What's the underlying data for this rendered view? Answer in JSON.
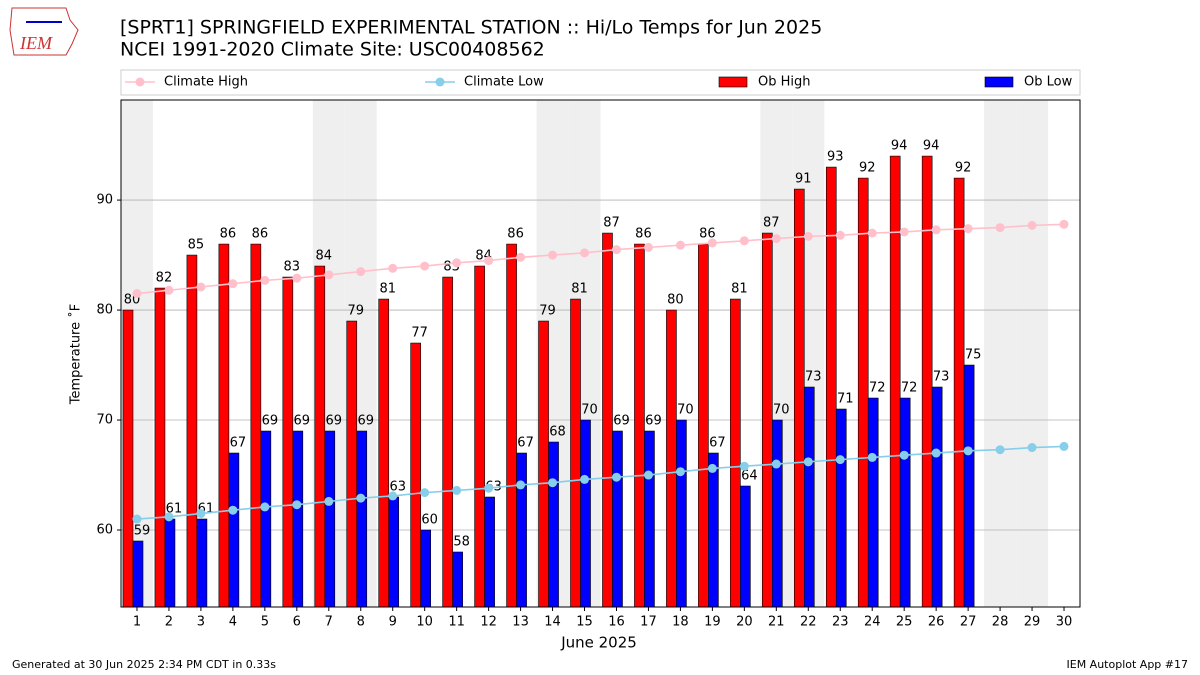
{
  "logo_text": "IEM",
  "footer_left": "Generated at 30 Jun 2025 2:34 PM CDT in 0.33s",
  "footer_right": "IEM Autoplot App #17",
  "chart_data": {
    "type": "bar",
    "title": "[SPRT1] SPRINGFIELD EXPERIMENTAL STATION :: Hi/Lo Temps for Jun 2025",
    "subtitle": "NCEI 1991-2020 Climate Site: USC00408562",
    "x_label": "June 2025",
    "y_label": "Temperature ˚F",
    "x": [
      1,
      2,
      3,
      4,
      5,
      6,
      7,
      8,
      9,
      10,
      11,
      12,
      13,
      14,
      15,
      16,
      17,
      18,
      19,
      20,
      21,
      22,
      23,
      24,
      25,
      26,
      27,
      28,
      29,
      30
    ],
    "xlim": [
      0.5,
      30.5
    ],
    "ylim": [
      53,
      99.1
    ],
    "yticks": [
      60,
      70,
      80,
      90
    ],
    "grid": true,
    "shaded_days": [
      1,
      7,
      8,
      14,
      15,
      21,
      22,
      28,
      29
    ],
    "series": [
      {
        "name": "Climate High",
        "kind": "line",
        "color": "#ffc0cb",
        "values": [
          81.5,
          81.8,
          82.1,
          82.4,
          82.7,
          82.9,
          83.2,
          83.5,
          83.8,
          84.0,
          84.3,
          84.5,
          84.8,
          85.0,
          85.2,
          85.5,
          85.7,
          85.9,
          86.1,
          86.3,
          86.5,
          86.7,
          86.8,
          87.0,
          87.1,
          87.3,
          87.4,
          87.5,
          87.7,
          87.8
        ]
      },
      {
        "name": "Climate Low",
        "kind": "line",
        "color": "#87ceeb",
        "values": [
          61.0,
          61.2,
          61.5,
          61.8,
          62.1,
          62.3,
          62.6,
          62.9,
          63.1,
          63.4,
          63.6,
          63.8,
          64.1,
          64.3,
          64.6,
          64.8,
          65.0,
          65.3,
          65.6,
          65.8,
          66.0,
          66.2,
          66.4,
          66.6,
          66.8,
          67.0,
          67.2,
          67.3,
          67.5,
          67.6
        ]
      },
      {
        "name": "Ob High",
        "kind": "bar",
        "color": "#ff0000",
        "values": [
          80,
          82,
          85,
          86,
          86,
          83,
          84,
          79,
          81,
          77,
          83,
          84,
          86,
          79,
          81,
          87,
          86,
          80,
          86,
          81,
          87,
          91,
          93,
          92,
          94,
          94,
          92,
          null,
          null,
          null
        ]
      },
      {
        "name": "Ob Low",
        "kind": "bar",
        "color": "#0000ff",
        "values": [
          59,
          61,
          61,
          67,
          69,
          69,
          69,
          69,
          63,
          60,
          58,
          63,
          67,
          68,
          70,
          69,
          69,
          70,
          67,
          64,
          70,
          73,
          71,
          72,
          72,
          73,
          75,
          null,
          null,
          null
        ]
      }
    ]
  }
}
